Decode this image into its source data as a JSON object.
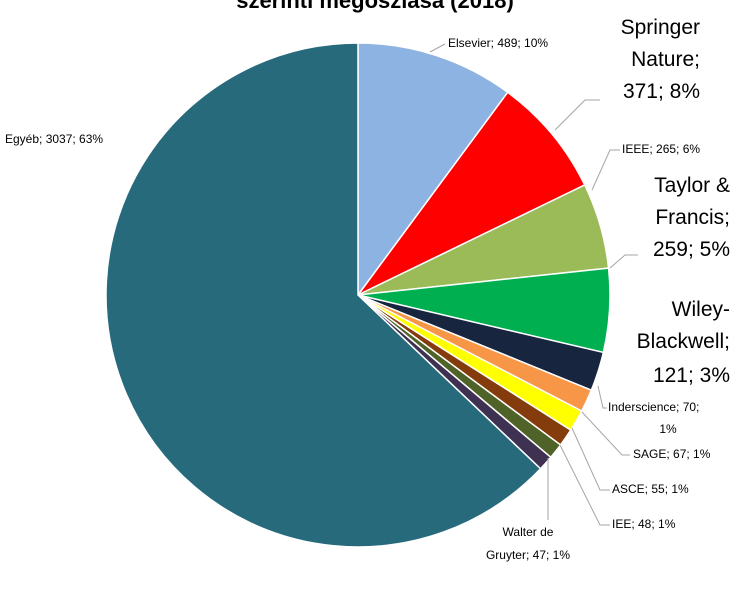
{
  "chart_data": {
    "type": "pie",
    "title": "szerinti megoszlása (2018)",
    "values": [
      489,
      371,
      265,
      259,
      121,
      70,
      67,
      55,
      48,
      47,
      3037
    ],
    "value_labels": [
      "Elsevier; 489; 10%",
      "Springer Nature; 371; 8%",
      "IEEE; 265; 6%",
      "Taylor & Francis; 259; 5%",
      "Wiley-Blackwell; 121; 3%",
      "Inderscience; 70; 1%",
      "SAGE; 67; 1%",
      "ASCE; 55; 1%",
      "IEE; 48; 1%",
      "Walter de Gruyter; 47; 1%",
      "Egyéb; 3037; 63%"
    ],
    "colors": [
      "#8db3e2",
      "#ff0000",
      "#9bbb59",
      "#00b050",
      "#17253f",
      "#f79646",
      "#ffff00",
      "#843c0c",
      "#4f6228",
      "#3f3151",
      "#276a7c"
    ]
  }
}
